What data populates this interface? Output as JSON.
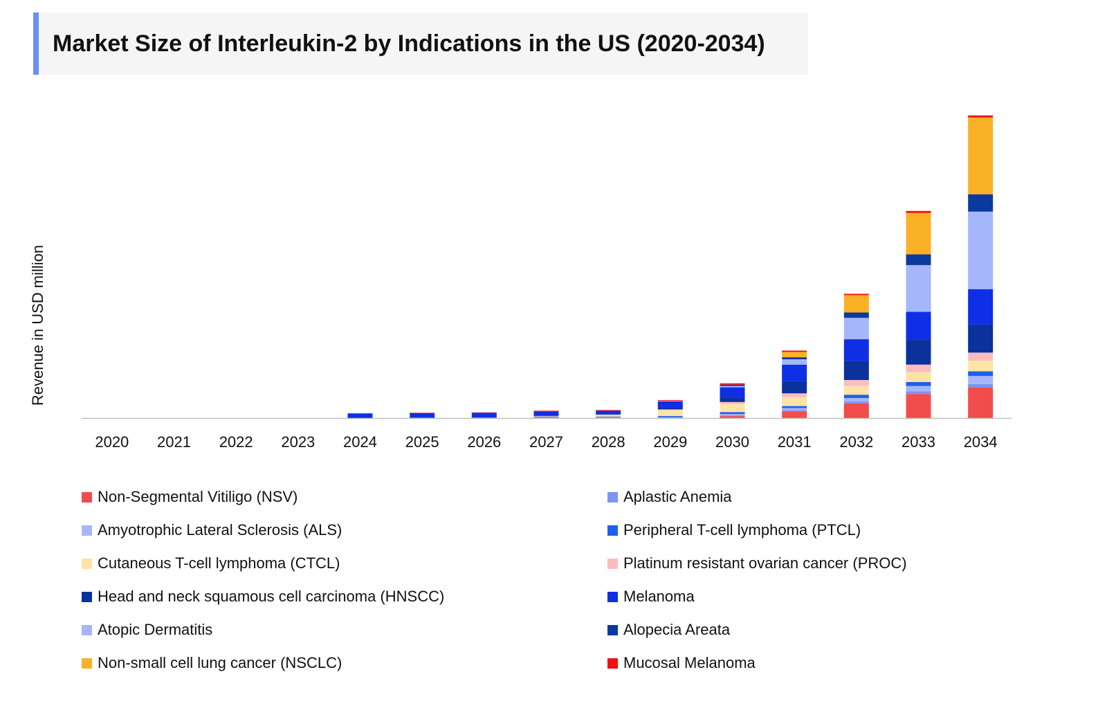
{
  "title": "Market Size of Interleukin-2 by Indications in the US (2020-2034)",
  "chart_data": {
    "type": "bar",
    "stacked": true,
    "title": "Market Size of Interleukin-2 by Indications in the US (2020-2034)",
    "xlabel": "",
    "ylabel": "Revenue in USD million",
    "ylim": [
      0,
      460
    ],
    "grid": false,
    "legend_position": "bottom",
    "categories": [
      "2020",
      "2021",
      "2022",
      "2023",
      "2024",
      "2025",
      "2026",
      "2027",
      "2028",
      "2029",
      "2030",
      "2031",
      "2032",
      "2033",
      "2034"
    ],
    "series": [
      {
        "name": "Non-Segmental Vitiligo (NSV)",
        "color": "#f24c4c",
        "values": [
          0,
          0,
          0,
          0,
          0,
          0,
          0,
          0,
          0,
          0,
          3,
          10,
          22,
          36,
          46
        ]
      },
      {
        "name": "Aplastic Anemia",
        "color": "#7b95f3",
        "values": [
          0,
          0,
          0,
          0,
          0,
          0,
          0,
          0,
          0,
          0,
          1,
          2,
          3,
          4,
          5
        ]
      },
      {
        "name": "Amyotrophic Lateral Sclerosis (ALS)",
        "color": "#a6b6fa",
        "values": [
          0,
          0,
          0,
          0,
          0,
          0.5,
          0.5,
          1,
          1,
          1,
          2,
          3,
          5,
          8,
          12
        ]
      },
      {
        "name": "Peripheral T-cell lymphoma (PTCL)",
        "color": "#1f5fed",
        "values": [
          0,
          0,
          0,
          0,
          0,
          0,
          0.5,
          1,
          1,
          2,
          3,
          3,
          5,
          6,
          7
        ]
      },
      {
        "name": "Cutaneous T-cell lymphoma (CTCL)",
        "color": "#fde4a6",
        "values": [
          0,
          0,
          0,
          0,
          0,
          0,
          0,
          1,
          3,
          9,
          12,
          13,
          13,
          15,
          16
        ]
      },
      {
        "name": "Platinum resistant ovarian cancer (PROC)",
        "color": "#fbbcc0",
        "values": [
          0,
          0,
          0,
          0,
          0,
          0,
          0,
          0,
          0,
          1,
          3,
          6,
          9,
          11,
          12
        ]
      },
      {
        "name": "Head and neck squamous cell carcinoma (HNSCC)",
        "color": "#0b319c",
        "values": [
          0,
          0,
          0,
          0,
          0,
          0,
          0,
          1,
          1,
          3,
          6,
          18,
          28,
          37,
          42
        ]
      },
      {
        "name": "Melanoma",
        "color": "#0f2fe6",
        "values": [
          0,
          0,
          0,
          0,
          7,
          7,
          7,
          6,
          5,
          9,
          16,
          25,
          33,
          42,
          53
        ]
      },
      {
        "name": "Atopic Dermatitis",
        "color": "#a6b6fa",
        "values": [
          0,
          0,
          0,
          0,
          0,
          0,
          0,
          0,
          0,
          1,
          2,
          8,
          32,
          70,
          116
        ]
      },
      {
        "name": "Alopecia Areata",
        "color": "#0b3a9e",
        "values": [
          0,
          0,
          0,
          0,
          0,
          0,
          0,
          0,
          0,
          0,
          2,
          3,
          8,
          16,
          26
        ]
      },
      {
        "name": "Non-small cell lung cancer (NSCLC)",
        "color": "#fbb126",
        "values": [
          0,
          0,
          0,
          0,
          0,
          0,
          0,
          0,
          0,
          0,
          0,
          8,
          26,
          62,
          115
        ]
      },
      {
        "name": "Mucosal Melanoma",
        "color": "#f50f0f",
        "values": [
          0,
          0,
          0,
          0,
          0,
          0.5,
          0.5,
          1,
          1,
          1,
          2,
          2,
          2,
          3,
          3
        ]
      }
    ]
  }
}
